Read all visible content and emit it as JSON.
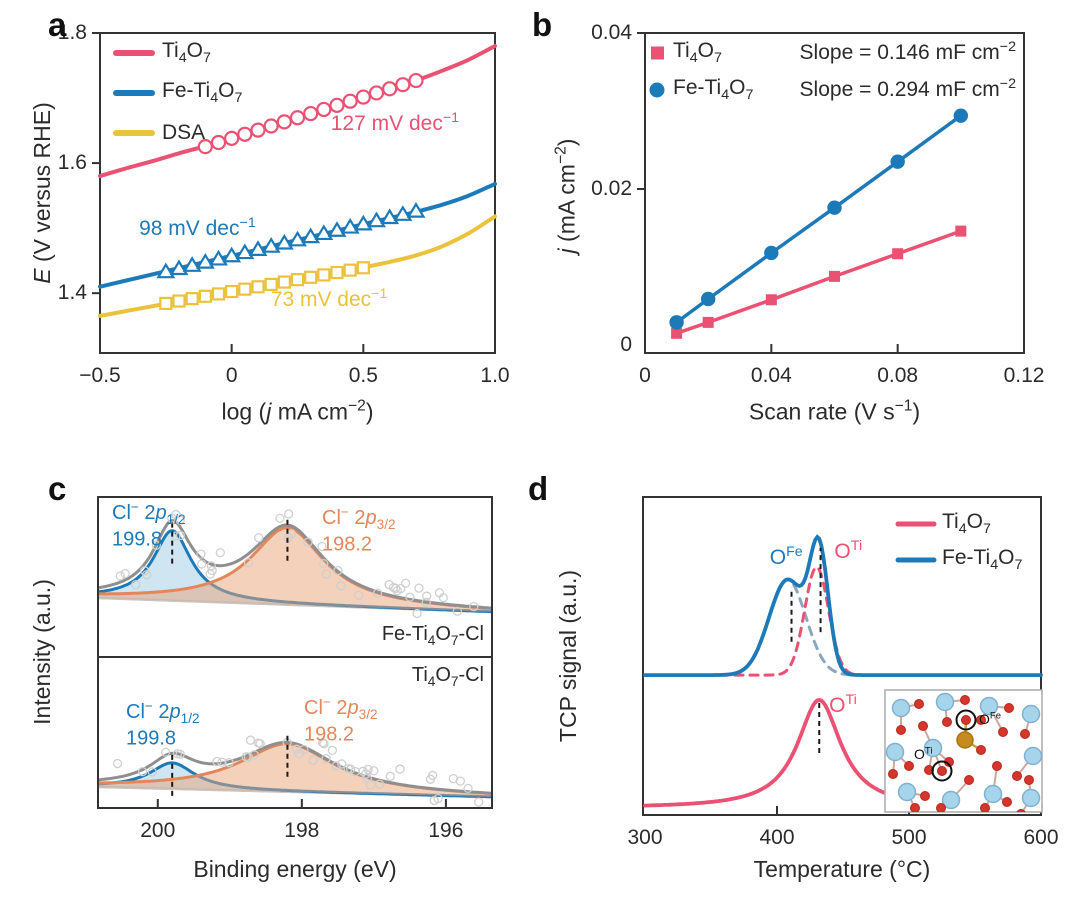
{
  "panels": [
    {
      "letter": "a"
    },
    {
      "letter": "b"
    },
    {
      "letter": "c"
    },
    {
      "letter": "d"
    }
  ],
  "colors": {
    "pink": "#ea5173",
    "blue": "#1d7ab9",
    "yellow": "#eac23b",
    "orange": "#e2875c",
    "slate": "#8ba6c1",
    "envelope": "#8f8f8f",
    "baseline_gray": "#c7c7c7",
    "scatter_gray": "#cfcfcf",
    "frame": "#333333",
    "text": "#2b2b2b",
    "fill_blue": "rgba(168,207,232,0.55)",
    "fill_orange": "rgba(232,164,120,0.5)",
    "atom_ti": "#a6d4ea",
    "atom_ti_edge": "#7fb2d0",
    "atom_o": "#d6352b",
    "atom_o_edge": "#b22a20",
    "atom_fe": "#c78a1e",
    "bond": "#cda79e",
    "bond_fe": "#c9a23f",
    "marker_black": "#1a1a1a"
  },
  "chart_data": [
    {
      "panel": "a",
      "type": "line",
      "xlabel_html": "log (<i>j</i> mA cm<sup>−2</sup>)",
      "ylabel_html": "<i>E</i> (V versus RHE)",
      "xlim": [
        -0.5,
        1.0
      ],
      "ylim": [
        1.308,
        1.8
      ],
      "xticks": [
        -0.5,
        0,
        0.5,
        1.0
      ],
      "xtick_labels": [
        "−0.5",
        "0",
        "0.5",
        "1.0"
      ],
      "yticks": [
        1.4,
        1.6,
        1.8
      ],
      "ytick_labels": [
        "1.4",
        "1.6",
        "1.8"
      ],
      "series": [
        {
          "name": "Ti4O7",
          "label_html": "Ti<sub>4</sub>O<sub>7</sub>",
          "color_key": "pink",
          "marker": "circle",
          "tafel_slope_mV_dec": 127,
          "tafel": {
            "slope": 0.127,
            "intercept": 1.638,
            "from": -0.1,
            "to": 0.7,
            "step": 0.05
          },
          "curve": [
            [
              -0.5,
              1.58
            ],
            [
              -0.4,
              1.592
            ],
            [
              -0.3,
              1.603
            ],
            [
              -0.2,
              1.615
            ],
            [
              -0.1,
              1.626
            ],
            [
              0,
              1.638
            ],
            [
              0.1,
              1.651
            ],
            [
              0.2,
              1.663
            ],
            [
              0.3,
              1.676
            ],
            [
              0.4,
              1.689
            ],
            [
              0.5,
              1.701
            ],
            [
              0.6,
              1.714
            ],
            [
              0.7,
              1.727
            ],
            [
              0.8,
              1.742
            ],
            [
              0.9,
              1.759
            ],
            [
              1,
              1.78
            ]
          ]
        },
        {
          "name": "Fe-Ti4O7",
          "label_html": "Fe-Ti<sub>4</sub>O<sub>7</sub>",
          "color_key": "blue",
          "marker": "triangle",
          "tafel_slope_mV_dec": 98,
          "tafel": {
            "slope": 0.098,
            "intercept": 1.4575,
            "from": -0.25,
            "to": 0.7,
            "step": 0.05
          },
          "curve": [
            [
              -0.5,
              1.41
            ],
            [
              -0.4,
              1.4195
            ],
            [
              -0.3,
              1.429
            ],
            [
              -0.2,
              1.4385
            ],
            [
              -0.1,
              1.448
            ],
            [
              0,
              1.4575
            ],
            [
              0.1,
              1.467
            ],
            [
              0.2,
              1.477
            ],
            [
              0.3,
              1.4865
            ],
            [
              0.4,
              1.496
            ],
            [
              0.5,
              1.506
            ],
            [
              0.6,
              1.5155
            ],
            [
              0.7,
              1.525
            ],
            [
              0.8,
              1.536
            ],
            [
              0.9,
              1.55
            ],
            [
              1,
              1.568
            ]
          ]
        },
        {
          "name": "DSA",
          "label_html": "DSA",
          "color_key": "yellow",
          "marker": "square",
          "tafel_slope_mV_dec": 73,
          "tafel": {
            "slope": 0.073,
            "intercept": 1.4025,
            "from": -0.25,
            "to": 0.5,
            "step": 0.05
          },
          "curve": [
            [
              -0.5,
              1.365
            ],
            [
              -0.4,
              1.3725
            ],
            [
              -0.3,
              1.38
            ],
            [
              -0.2,
              1.3875
            ],
            [
              -0.1,
              1.395
            ],
            [
              0,
              1.4025
            ],
            [
              0.1,
              1.41
            ],
            [
              0.2,
              1.417
            ],
            [
              0.3,
              1.4245
            ],
            [
              0.4,
              1.432
            ],
            [
              0.5,
              1.4395
            ],
            [
              0.6,
              1.448
            ],
            [
              0.7,
              1.458
            ],
            [
              0.8,
              1.472
            ],
            [
              0.9,
              1.492
            ],
            [
              1,
              1.518
            ]
          ]
        }
      ],
      "annotations": [
        {
          "text_html": "127 mV dec<sup>−1</sup>",
          "color_key": "pink",
          "x": 0.62,
          "y": 1.662
        },
        {
          "text_html": "98 mV dec<sup>−1</sup>",
          "color_key": "blue",
          "x": -0.13,
          "y": 1.5
        },
        {
          "text_html": "73 mV dec<sup>−1</sup>",
          "color_key": "yellow",
          "x": 0.37,
          "y": 1.391
        }
      ]
    },
    {
      "panel": "b",
      "type": "scatter-line",
      "xlabel_html": "Scan rate (V s<sup>−1</sup>)",
      "ylabel_html": "<i>j</i> (mA cm<sup>−2</sup>)",
      "xlim": [
        0,
        0.12
      ],
      "ylim": [
        0,
        0.04
      ],
      "xticks": [
        0,
        0.04,
        0.08,
        0.12
      ],
      "xtick_labels": [
        "0",
        "0.04",
        "0.08",
        "0.12"
      ],
      "yticks": [
        0,
        0.02,
        0.04
      ],
      "ytick_labels": [
        "0",
        "0.02",
        "0.04"
      ],
      "x": [
        0.01,
        0.02,
        0.04,
        0.06,
        0.08,
        0.1
      ],
      "series": [
        {
          "name": "Ti4O7",
          "label_html": "Ti<sub>4</sub>O<sub>7</sub>",
          "color_key": "pink",
          "marker": "square",
          "slope_mF_cm2": 0.146,
          "slope_label_html": "Slope = 0.146 mF cm<sup>−2</sup>",
          "values": [
            0.0015,
            0.0029,
            0.0058,
            0.0088,
            0.0117,
            0.0146
          ]
        },
        {
          "name": "Fe-Ti4O7",
          "label_html": "Fe-Ti<sub>4</sub>O<sub>7</sub>",
          "color_key": "blue",
          "marker": "circle",
          "slope_mF_cm2": 0.294,
          "slope_label_html": "Slope = 0.294 mF cm<sup>−2</sup>",
          "values": [
            0.0029,
            0.0059,
            0.0118,
            0.0176,
            0.0235,
            0.0294
          ]
        }
      ]
    },
    {
      "panel": "c",
      "type": "xps",
      "xlabel_html": "Binding energy (eV)",
      "ylabel_html": "Intensity (a.u.)",
      "xlim": [
        200.83,
        195.36
      ],
      "xticks": [
        200,
        198,
        196
      ],
      "xtick_labels": [
        "200",
        "198",
        "196"
      ],
      "subpanels": [
        {
          "sample": "Fe-Ti4O7-Cl",
          "label_html": "Fe-Ti<sub>4</sub>O<sub>7</sub>-Cl",
          "peaks": [
            {
              "name": "Cl 2p1/2",
              "label_html": "Cl<sup>−</sup> 2<i>p</i><sub>1/2</sub>",
              "energy_eV": 199.8,
              "energy_label": "199.8",
              "color_key": "blue",
              "amp": 70,
              "width": 0.32
            },
            {
              "name": "Cl 2p3/2",
              "label_html": "Cl<sup>−</sup> 2<i>p</i><sub>3/2</sub>",
              "energy_eV": 198.2,
              "energy_label": "198.2",
              "color_key": "orange",
              "amp": 77,
              "width": 0.62
            }
          ]
        },
        {
          "sample": "Ti4O7-Cl",
          "label_html": "Ti<sub>4</sub>O<sub>7</sub>-Cl",
          "peaks": [
            {
              "name": "Cl 2p1/2",
              "label_html": "Cl<sup>−</sup> 2<i>p</i><sub>1/2</sub>",
              "energy_eV": 199.8,
              "energy_label": "199.8",
              "color_key": "blue",
              "amp": 26,
              "width": 0.38
            },
            {
              "name": "Cl 2p3/2",
              "label_html": "Cl<sup>−</sup> 2<i>p</i><sub>3/2</sub>",
              "energy_eV": 198.2,
              "energy_label": "198.2",
              "color_key": "orange",
              "amp": 48,
              "width": 0.8
            }
          ]
        }
      ]
    },
    {
      "panel": "d",
      "type": "tpd",
      "xlabel_html": "Temperature (°C)",
      "ylabel_html": "TCP signal (a.u.)",
      "xlim": [
        300,
        600
      ],
      "xticks": [
        300,
        400,
        500,
        600
      ],
      "xtick_labels": [
        "300",
        "400",
        "500",
        "600"
      ],
      "legend": [
        {
          "label_html": "Ti<sub>4</sub>O<sub>7</sub>",
          "color_key": "pink"
        },
        {
          "label_html": "Fe-Ti<sub>4</sub>O<sub>7</sub>",
          "color_key": "blue"
        }
      ],
      "traces": [
        {
          "name": "Ti4O7",
          "color_key": "pink",
          "style": "solid",
          "baseline": 0.022,
          "lorentz": [
            {
              "center": 432,
              "amp": 0.34,
              "gamma": 20
            }
          ]
        },
        {
          "name": "O-Fe dashed component",
          "color_key": "slate",
          "style": "dashed",
          "baseline": 0.44,
          "gauss": [
            {
              "center": 408,
              "amp": 0.3,
              "sigma": 14
            }
          ]
        },
        {
          "name": "O-Ti dashed component",
          "color_key": "pink",
          "style": "dashed",
          "baseline": 0.44,
          "gauss": [
            {
              "center": 430,
              "amp": 0.34,
              "sigma": 9
            }
          ]
        },
        {
          "name": "Fe-Ti4O7",
          "color_key": "blue",
          "style": "solid",
          "baseline": 0.44,
          "gauss": [
            {
              "center": 408,
              "amp": 0.3,
              "sigma": 14
            },
            {
              "center": 432,
              "amp": 0.36,
              "sigma": 7
            }
          ]
        }
      ],
      "annotations": [
        {
          "text_html": "O<sup>Fe</sup>",
          "color_key": "blue",
          "x": 407,
          "yfrac": 0.81
        },
        {
          "text_html": "O<sup>Ti</sup>",
          "color_key": "pink",
          "x": 454,
          "yfrac": 0.83
        },
        {
          "text_html": "O<sup>Ti</sup>",
          "color_key": "pink",
          "x": 450,
          "yfrac": 0.345
        }
      ],
      "peak_markers": [
        {
          "x": 411,
          "f1": 0.545,
          "f2": 0.715
        },
        {
          "x": 433,
          "f1": 0.575,
          "f2": 0.84
        },
        {
          "x": 432,
          "f1": 0.195,
          "f2": 0.355
        }
      ],
      "inset_labels": [
        {
          "text_html": "O<sup>Fe</sup>"
        },
        {
          "text_html": "O<sup>Ti</sup>"
        }
      ]
    }
  ]
}
